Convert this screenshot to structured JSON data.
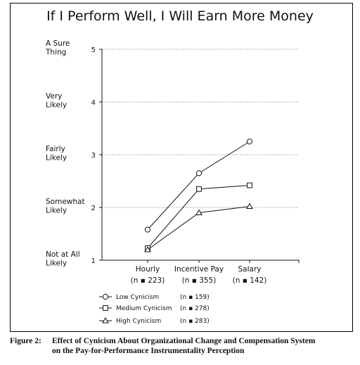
{
  "title": "If I Perform Well, I Will Earn More Money",
  "caption": {
    "label": "Figure 2:",
    "line1": "Effect of Cynicism About Organizational Change and Compensation System",
    "line2": "on the Pay-for-Performance Instrumentality Perception"
  },
  "chart_data": {
    "type": "line",
    "title": "If I Perform Well, I Will Earn More Money",
    "categories": [
      "Hourly",
      "Incentive Pay",
      "Salary"
    ],
    "category_sublabels": [
      "(n ▪ 223)",
      "(n ▪ 355)",
      "(n ▪ 142)"
    ],
    "y_ticks": [
      1,
      2,
      3,
      4,
      5
    ],
    "y_level_labels": [
      "Not at All Likely",
      "Somewhat Likely",
      "Fairly Likely",
      "Very Likely",
      "A Sure Thing"
    ],
    "ylim": [
      1,
      5
    ],
    "grid": "horizontal dotted lines at ticks 2–5",
    "legend_position": "bottom-left",
    "series": [
      {
        "name": "Low Cynicism",
        "n_label": "(n ▪ 159)",
        "marker": "circle",
        "values": [
          1.58,
          2.65,
          3.25
        ]
      },
      {
        "name": "Medium Cynicism",
        "n_label": "(n ▪ 278)",
        "marker": "square",
        "values": [
          1.23,
          2.35,
          2.42
        ]
      },
      {
        "name": "High Cynicism",
        "n_label": "(n ▪ 283)",
        "marker": "triangle",
        "values": [
          1.2,
          1.9,
          2.02
        ]
      }
    ]
  }
}
